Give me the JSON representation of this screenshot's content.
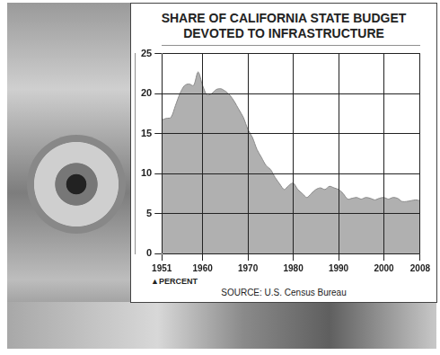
{
  "chart_data": {
    "type": "area",
    "title": "SHARE OF CALIFORNIA STATE BUDGET\nDEVOTED TO INFRASTRUCTURE",
    "y_label": "▲PERCENT",
    "annotations": [
      "SOURCE: U.S. Census Bureau"
    ],
    "x": [
      1951,
      1952,
      1953,
      1954,
      1955,
      1956,
      1957,
      1958,
      1959,
      1960,
      1961,
      1962,
      1963,
      1964,
      1965,
      1966,
      1967,
      1968,
      1969,
      1970,
      1971,
      1972,
      1973,
      1974,
      1975,
      1976,
      1977,
      1978,
      1979,
      1980,
      1981,
      1982,
      1983,
      1984,
      1985,
      1986,
      1987,
      1988,
      1989,
      1990,
      1991,
      1992,
      1993,
      1994,
      1995,
      1996,
      1997,
      1998,
      1999,
      2000,
      2001,
      2002,
      2003,
      2004,
      2005,
      2006,
      2007,
      2008
    ],
    "values": [
      16.7,
      16.9,
      17,
      18.5,
      20,
      21,
      21.2,
      21,
      22.7,
      21,
      19.8,
      20,
      20.5,
      20.6,
      20.3,
      19.8,
      19,
      18,
      17,
      15.5,
      14.5,
      13,
      12,
      11,
      10.5,
      9.5,
      8.7,
      8,
      8.5,
      8.8,
      8,
      7.5,
      7,
      7.5,
      8,
      8.2,
      8,
      8.4,
      8.2,
      8,
      7.5,
      6.8,
      6.9,
      7,
      6.8,
      7,
      6.9,
      6.7,
      6.9,
      7,
      6.8,
      7,
      6.9,
      6.5,
      6.5,
      6.6,
      6.7,
      6.6
    ],
    "color": "#b0b0b0",
    "xlim": [
      1951,
      2008
    ],
    "xticks": [
      1951,
      1960,
      1970,
      1980,
      1990,
      2000,
      2008
    ],
    "ylim": [
      0,
      25
    ],
    "yticks": [
      0,
      5,
      10,
      15,
      20,
      25
    ],
    "grid": true
  }
}
